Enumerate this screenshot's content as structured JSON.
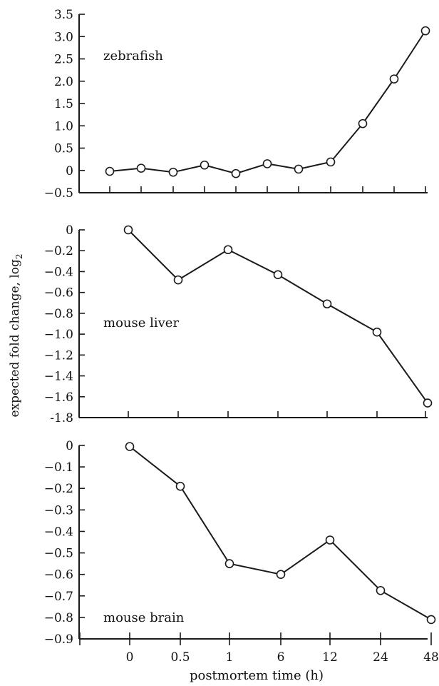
{
  "chart_data": [
    {
      "type": "line",
      "panel_label": "zebrafish",
      "x": [
        "",
        "",
        "",
        "",
        "",
        "",
        "",
        "",
        "",
        "",
        ""
      ],
      "series": [
        {
          "values": [
            -0.02,
            0.05,
            -0.04,
            0.12,
            -0.07,
            0.15,
            0.03,
            0.19,
            1.05,
            2.05,
            3.13
          ]
        }
      ],
      "ylim": [
        -0.5,
        3.5
      ],
      "yticks": [
        "3.5",
        "3.0",
        "2.5",
        "2.0",
        "1.5",
        "1.0",
        "0.5",
        "0",
        "−0.5"
      ],
      "ytick_values": [
        3.5,
        3.0,
        2.5,
        2.0,
        1.5,
        1.0,
        0.5,
        0,
        -0.5
      ]
    },
    {
      "type": "line",
      "panel_label": "mouse liver",
      "x": [
        "0",
        "0.5",
        "1",
        "6",
        "12",
        "24",
        "48"
      ],
      "series": [
        {
          "values": [
            0,
            -0.48,
            -0.19,
            -0.43,
            -0.71,
            -0.98,
            -1.66
          ]
        }
      ],
      "ylim": [
        -1.8,
        0
      ],
      "yticks": [
        "0",
        "−0.2",
        "−0.4",
        "−0.6",
        "−0.8",
        "−1.0",
        "−1.2",
        "−1.4",
        "−1.6",
        "-1.8"
      ],
      "ytick_values": [
        0,
        -0.2,
        -0.4,
        -0.6,
        -0.8,
        -1.0,
        -1.2,
        -1.4,
        -1.6,
        -1.8
      ]
    },
    {
      "type": "line",
      "panel_label": "mouse brain",
      "x": [
        "0",
        "0.5",
        "1",
        "6",
        "12",
        "24",
        "48"
      ],
      "series": [
        {
          "values": [
            -0.005,
            -0.19,
            -0.55,
            -0.6,
            -0.44,
            -0.675,
            -0.81
          ]
        }
      ],
      "ylim": [
        -0.9,
        0
      ],
      "yticks": [
        "0",
        "−0.1",
        "−0.2",
        "−0.3",
        "−0.4",
        "−0.5",
        "−0.6",
        "−0.7",
        "−0.8",
        "−0.9"
      ],
      "ytick_values": [
        0,
        -0.1,
        -0.2,
        -0.3,
        -0.4,
        -0.5,
        -0.6,
        -0.7,
        -0.8,
        -0.9
      ],
      "xticks": [
        "0",
        "0.5",
        "1",
        "6",
        "12",
        "24",
        "48"
      ]
    }
  ],
  "ylabel": "expected fold change, log",
  "ylabel_sub": "2",
  "xlabel": "postmortem time (h)",
  "colors": {
    "line": "#1a1a1a",
    "marker_fill": "#ffffff",
    "axis": "#1a1a1a"
  }
}
